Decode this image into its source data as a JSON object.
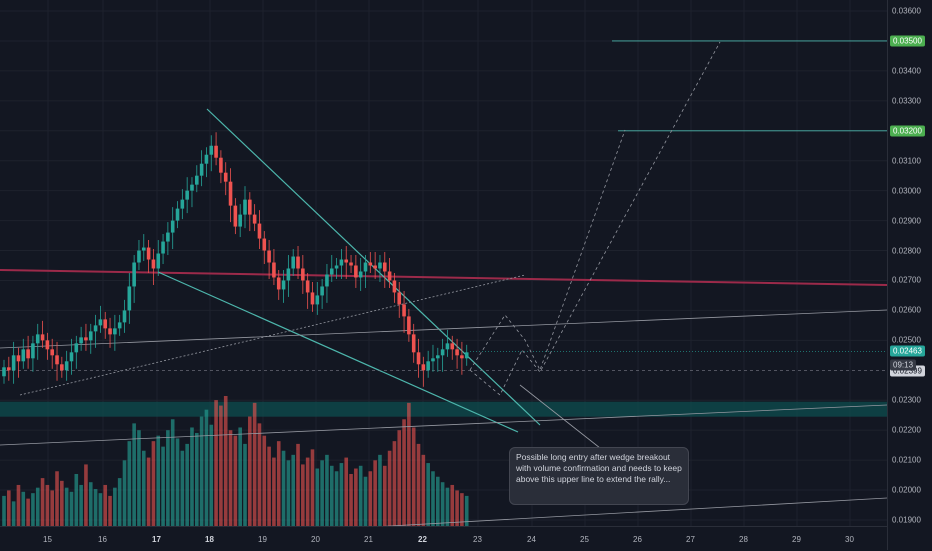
{
  "chart_data": {
    "type": "candlestick",
    "symbol_timeframe": "",
    "price_axis": {
      "ticks": [
        "0.03600",
        "0.03500",
        "0.03400",
        "0.03300",
        "0.03200",
        "0.03100",
        "0.03000",
        "0.02900",
        "0.02800",
        "0.02700",
        "0.02600",
        "0.02500",
        "0.02463",
        "0.02399",
        "0.02300",
        "0.02200",
        "0.02100",
        "0.02000",
        "0.01900"
      ],
      "ylim": [
        0.0188,
        0.0365
      ]
    },
    "time_axis": {
      "labels": [
        "15",
        "16",
        "17",
        "18",
        "19",
        "20",
        "21",
        "22",
        "23",
        "24",
        "25",
        "26",
        "27",
        "28",
        "29",
        "30"
      ]
    },
    "current_price": {
      "value": "0.02463",
      "countdown": "09:13"
    },
    "crosshair_price": "0.02399",
    "targets": [
      {
        "label": "0.03500",
        "value": 0.035
      },
      {
        "label": "0.03200",
        "value": 0.032
      }
    ],
    "support_zone": [
      0.02245,
      0.02295
    ],
    "resistance_line": 0.027,
    "annotation": "Possible long entry after wedge breakout with volume confirmation and needs to keep above this upper line to extend the rally...",
    "colors": {
      "up": "#26a69a",
      "down": "#ef5350",
      "up_volume": "#26a69a",
      "down_volume": "#ef5350",
      "resistance": "#9c2a4a",
      "zone": "#0e4d4f",
      "target_tag": "#4caf50"
    },
    "candles_close": [
      0.0241,
      0.024,
      0.0245,
      0.0243,
      0.0247,
      0.0244,
      0.0249,
      0.0252,
      0.025,
      0.0247,
      0.0245,
      0.0242,
      0.024,
      0.0243,
      0.0246,
      0.0249,
      0.0251,
      0.025,
      0.0253,
      0.0255,
      0.0257,
      0.0254,
      0.0252,
      0.0254,
      0.0256,
      0.026,
      0.0268,
      0.0276,
      0.028,
      0.0281,
      0.0277,
      0.0274,
      0.0279,
      0.0283,
      0.0286,
      0.029,
      0.0294,
      0.0297,
      0.03,
      0.0302,
      0.0305,
      0.0309,
      0.0312,
      0.0315,
      0.0311,
      0.0306,
      0.0303,
      0.0295,
      0.0288,
      0.0292,
      0.0297,
      0.0292,
      0.0289,
      0.0284,
      0.028,
      0.0276,
      0.0271,
      0.0267,
      0.027,
      0.0274,
      0.0278,
      0.0274,
      0.027,
      0.0266,
      0.0262,
      0.0265,
      0.0268,
      0.0272,
      0.0274,
      0.0275,
      0.0277,
      0.0276,
      0.0275,
      0.0271,
      0.0273,
      0.0276,
      0.0275,
      0.0274,
      0.0276,
      0.0273,
      0.027,
      0.0266,
      0.0262,
      0.0258,
      0.0252,
      0.0246,
      0.0242,
      0.024,
      0.0243,
      0.0244,
      0.0245,
      0.0247,
      0.0249,
      0.0247,
      0.0245,
      0.0244,
      0.0246
    ],
    "volume": [
      22,
      26,
      18,
      30,
      25,
      20,
      24,
      28,
      35,
      30,
      26,
      40,
      33,
      28,
      25,
      38,
      30,
      45,
      32,
      27,
      24,
      30,
      22,
      28,
      35,
      48,
      62,
      75,
      70,
      55,
      50,
      62,
      66,
      58,
      70,
      78,
      64,
      55,
      60,
      72,
      68,
      80,
      85,
      74,
      92,
      88,
      95,
      70,
      66,
      72,
      60,
      80,
      90,
      75,
      66,
      58,
      50,
      62,
      55,
      48,
      52,
      60,
      45,
      50,
      56,
      42,
      48,
      52,
      44,
      40,
      46,
      50,
      38,
      42,
      44,
      36,
      40,
      48,
      52,
      44,
      55,
      62,
      70,
      78,
      90,
      72,
      60,
      52,
      46,
      40,
      36,
      32,
      28,
      30,
      26,
      24,
      22
    ]
  }
}
